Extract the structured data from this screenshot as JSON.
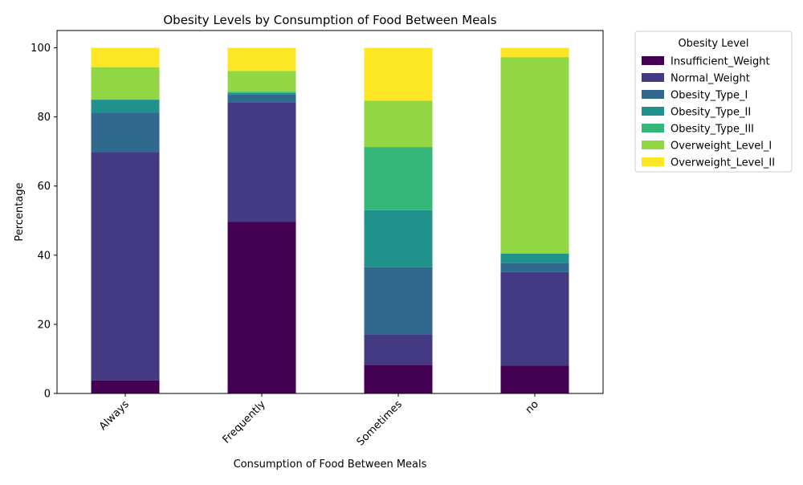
{
  "chart_data": {
    "type": "bar",
    "stacked": true,
    "title": "Obesity Levels by Consumption of Food Between Meals",
    "xlabel": "Consumption of Food Between Meals",
    "ylabel": "Percentage",
    "ylim": [
      0,
      105
    ],
    "yticks": [
      0,
      20,
      40,
      60,
      80,
      100
    ],
    "grid": false,
    "legend_title": "Obesity Level",
    "legend_position": "outside-top-right",
    "categories": [
      "Always",
      "Frequently",
      "Sometimes",
      "no"
    ],
    "series": [
      {
        "name": "Insufficient_Weight",
        "color": "#440154",
        "values": [
          3.8,
          49.6,
          8.3,
          8.1
        ]
      },
      {
        "name": "Normal_Weight",
        "color": "#443983",
        "values": [
          66.1,
          34.5,
          8.8,
          27.0
        ]
      },
      {
        "name": "Obesity_Type_I",
        "color": "#31688e",
        "values": [
          11.3,
          2.4,
          19.4,
          2.7
        ]
      },
      {
        "name": "Obesity_Type_II",
        "color": "#21918c",
        "values": [
          3.8,
          0.4,
          16.5,
          2.7
        ]
      },
      {
        "name": "Obesity_Type_III",
        "color": "#35b779",
        "values": [
          0.0,
          0.4,
          18.3,
          0.0
        ]
      },
      {
        "name": "Overweight_Level_I",
        "color": "#90d743",
        "values": [
          9.4,
          6.0,
          13.4,
          56.8
        ]
      },
      {
        "name": "Overweight_Level_II",
        "color": "#fde725",
        "values": [
          5.6,
          6.7,
          15.3,
          2.7
        ]
      }
    ]
  }
}
